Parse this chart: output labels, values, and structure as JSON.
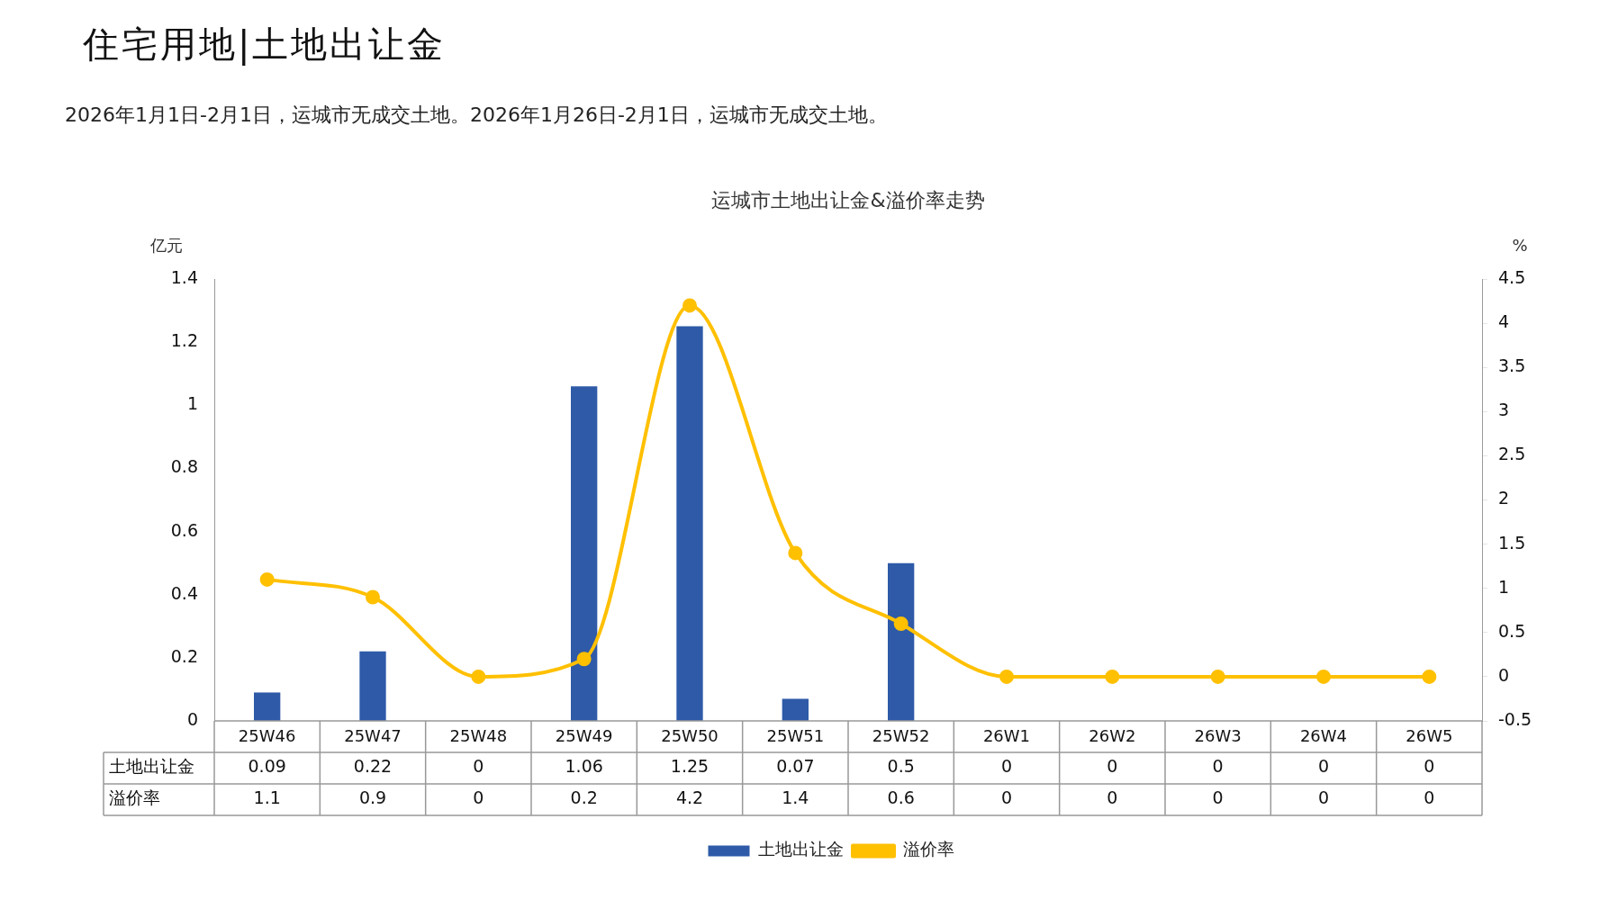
{
  "chart_data": {
    "type": "bar",
    "title": "运城市土地出让金&溢价率走势",
    "annotations": [
      "住宅用地|土地出让金",
      "2026年1月1日-2月1日，运城市无成交土地。2026年1月26日-2月1日，运城市无成交土地。"
    ],
    "ylabel": "亿元",
    "y2label": "%",
    "categories": [
      "25W46",
      "25W47",
      "25W48",
      "25W49",
      "25W50",
      "25W51",
      "25W52",
      "26W1",
      "26W2",
      "26W3",
      "26W4",
      "26W5"
    ],
    "series": [
      {
        "name": "土地出让金",
        "color": "#2e5aa8",
        "values": [
          0.09,
          0.22,
          0,
          1.06,
          1.25,
          0.07,
          0.5,
          0,
          0,
          0,
          0,
          0
        ]
      },
      {
        "name": "溢价率",
        "type": "line",
        "axis": "y2",
        "color": "#ffc000",
        "values": [
          1.1,
          0.9,
          0,
          0.2,
          4.2,
          1.4,
          0.6,
          0,
          0,
          0,
          0,
          0
        ]
      }
    ],
    "ylim": [
      0,
      1.4
    ],
    "yticks": [
      0,
      0.2,
      0.4,
      0.6,
      0.8,
      1,
      1.2,
      1.4
    ],
    "y2lim": [
      -0.5,
      4.5
    ],
    "y2ticks": [
      -0.5,
      0,
      0.5,
      1,
      1.5,
      2,
      2.5,
      3,
      3.5,
      4,
      4.5
    ],
    "data_labels": true,
    "grid": false,
    "legend": "bottom",
    "marker": "circle",
    "line_style": "solid"
  }
}
